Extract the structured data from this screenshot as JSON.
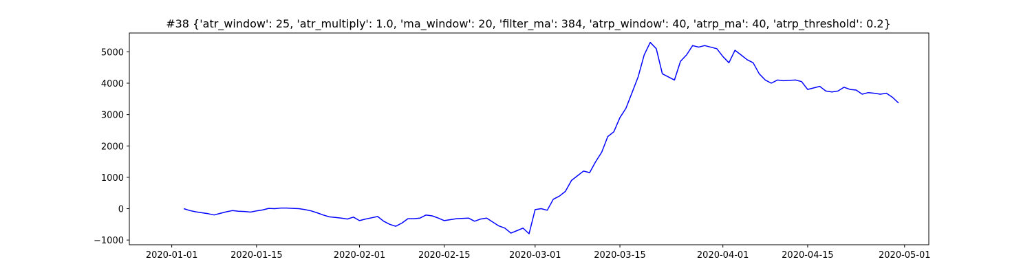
{
  "chart_data": {
    "type": "line",
    "title": "#38 {'atr_window': 25, 'atr_multiply': 1.0, 'ma_window': 20, 'filter_ma': 384, 'atrp_window': 40, 'atrp_ma': 40, 'atrp_threshold': 0.2}",
    "xlabel": "",
    "ylabel": "",
    "x_axis_type": "date",
    "xlim": [
      "2019-12-25",
      "2020-05-05"
    ],
    "ylim": [
      -1150,
      5600
    ],
    "grid": false,
    "legend": "none",
    "x_ticks": [
      {
        "value": "2020-01-01",
        "label": "2020-01-01"
      },
      {
        "value": "2020-01-15",
        "label": "2020-01-15"
      },
      {
        "value": "2020-02-01",
        "label": "2020-02-01"
      },
      {
        "value": "2020-02-15",
        "label": "2020-02-15"
      },
      {
        "value": "2020-03-01",
        "label": "2020-03-01"
      },
      {
        "value": "2020-03-15",
        "label": "2020-03-15"
      },
      {
        "value": "2020-04-01",
        "label": "2020-04-01"
      },
      {
        "value": "2020-04-15",
        "label": "2020-04-15"
      },
      {
        "value": "2020-05-01",
        "label": "2020-05-01"
      }
    ],
    "y_ticks": [
      {
        "value": -1000,
        "label": "−1000"
      },
      {
        "value": 0,
        "label": "0"
      },
      {
        "value": 1000,
        "label": "1000"
      },
      {
        "value": 2000,
        "label": "2000"
      },
      {
        "value": 3000,
        "label": "3000"
      },
      {
        "value": 4000,
        "label": "4000"
      },
      {
        "value": 5000,
        "label": "5000"
      }
    ],
    "series": [
      {
        "color": "#0000ff",
        "points": [
          [
            "2020-01-03",
            0
          ],
          [
            "2020-01-04",
            -60
          ],
          [
            "2020-01-05",
            -100
          ],
          [
            "2020-01-06",
            -130
          ],
          [
            "2020-01-07",
            -160
          ],
          [
            "2020-01-08",
            -200
          ],
          [
            "2020-01-09",
            -150
          ],
          [
            "2020-01-10",
            -100
          ],
          [
            "2020-01-11",
            -60
          ],
          [
            "2020-01-12",
            -80
          ],
          [
            "2020-01-13",
            -90
          ],
          [
            "2020-01-14",
            -110
          ],
          [
            "2020-01-15",
            -70
          ],
          [
            "2020-01-16",
            -40
          ],
          [
            "2020-01-17",
            10
          ],
          [
            "2020-01-18",
            0
          ],
          [
            "2020-01-19",
            20
          ],
          [
            "2020-01-20",
            20
          ],
          [
            "2020-01-21",
            10
          ],
          [
            "2020-01-22",
            0
          ],
          [
            "2020-01-23",
            -30
          ],
          [
            "2020-01-24",
            -70
          ],
          [
            "2020-01-25",
            -130
          ],
          [
            "2020-01-26",
            -200
          ],
          [
            "2020-01-27",
            -260
          ],
          [
            "2020-01-28",
            -280
          ],
          [
            "2020-01-29",
            -300
          ],
          [
            "2020-01-30",
            -330
          ],
          [
            "2020-01-31",
            -270
          ],
          [
            "2020-02-01",
            -380
          ],
          [
            "2020-02-02",
            -330
          ],
          [
            "2020-02-03",
            -290
          ],
          [
            "2020-02-04",
            -250
          ],
          [
            "2020-02-05",
            -400
          ],
          [
            "2020-02-06",
            -500
          ],
          [
            "2020-02-07",
            -560
          ],
          [
            "2020-02-08",
            -460
          ],
          [
            "2020-02-09",
            -320
          ],
          [
            "2020-02-10",
            -320
          ],
          [
            "2020-02-11",
            -300
          ],
          [
            "2020-02-12",
            -200
          ],
          [
            "2020-02-13",
            -230
          ],
          [
            "2020-02-14",
            -300
          ],
          [
            "2020-02-15",
            -380
          ],
          [
            "2020-02-17",
            -320
          ],
          [
            "2020-02-19",
            -300
          ],
          [
            "2020-02-20",
            -400
          ],
          [
            "2020-02-21",
            -330
          ],
          [
            "2020-02-22",
            -300
          ],
          [
            "2020-02-24",
            -550
          ],
          [
            "2020-02-25",
            -620
          ],
          [
            "2020-02-26",
            -780
          ],
          [
            "2020-02-27",
            -700
          ],
          [
            "2020-02-28",
            -620
          ],
          [
            "2020-02-29",
            -800
          ],
          [
            "2020-03-01",
            -30
          ],
          [
            "2020-03-02",
            0
          ],
          [
            "2020-03-03",
            -50
          ],
          [
            "2020-03-04",
            300
          ],
          [
            "2020-03-05",
            400
          ],
          [
            "2020-03-06",
            550
          ],
          [
            "2020-03-07",
            900
          ],
          [
            "2020-03-08",
            1050
          ],
          [
            "2020-03-09",
            1200
          ],
          [
            "2020-03-10",
            1150
          ],
          [
            "2020-03-11",
            1500
          ],
          [
            "2020-03-12",
            1800
          ],
          [
            "2020-03-13",
            2300
          ],
          [
            "2020-03-14",
            2450
          ],
          [
            "2020-03-15",
            2900
          ],
          [
            "2020-03-16",
            3200
          ],
          [
            "2020-03-17",
            3700
          ],
          [
            "2020-03-18",
            4200
          ],
          [
            "2020-03-19",
            4900
          ],
          [
            "2020-03-20",
            5300
          ],
          [
            "2020-03-21",
            5100
          ],
          [
            "2020-03-22",
            4300
          ],
          [
            "2020-03-24",
            4100
          ],
          [
            "2020-03-25",
            4700
          ],
          [
            "2020-03-26",
            4900
          ],
          [
            "2020-03-27",
            5200
          ],
          [
            "2020-03-28",
            5150
          ],
          [
            "2020-03-29",
            5200
          ],
          [
            "2020-03-31",
            5100
          ],
          [
            "2020-04-01",
            4850
          ],
          [
            "2020-04-02",
            4650
          ],
          [
            "2020-04-03",
            5050
          ],
          [
            "2020-04-04",
            4900
          ],
          [
            "2020-04-05",
            4750
          ],
          [
            "2020-04-06",
            4650
          ],
          [
            "2020-04-07",
            4300
          ],
          [
            "2020-04-08",
            4100
          ],
          [
            "2020-04-09",
            4000
          ],
          [
            "2020-04-10",
            4100
          ],
          [
            "2020-04-11",
            4080
          ],
          [
            "2020-04-13",
            4100
          ],
          [
            "2020-04-14",
            4050
          ],
          [
            "2020-04-15",
            3800
          ],
          [
            "2020-04-16",
            3850
          ],
          [
            "2020-04-17",
            3900
          ],
          [
            "2020-04-18",
            3750
          ],
          [
            "2020-04-19",
            3720
          ],
          [
            "2020-04-20",
            3750
          ],
          [
            "2020-04-21",
            3870
          ],
          [
            "2020-04-22",
            3800
          ],
          [
            "2020-04-23",
            3780
          ],
          [
            "2020-04-24",
            3650
          ],
          [
            "2020-04-25",
            3700
          ],
          [
            "2020-04-26",
            3680
          ],
          [
            "2020-04-27",
            3650
          ],
          [
            "2020-04-28",
            3680
          ],
          [
            "2020-04-29",
            3550
          ],
          [
            "2020-04-30",
            3370
          ]
        ]
      }
    ]
  }
}
